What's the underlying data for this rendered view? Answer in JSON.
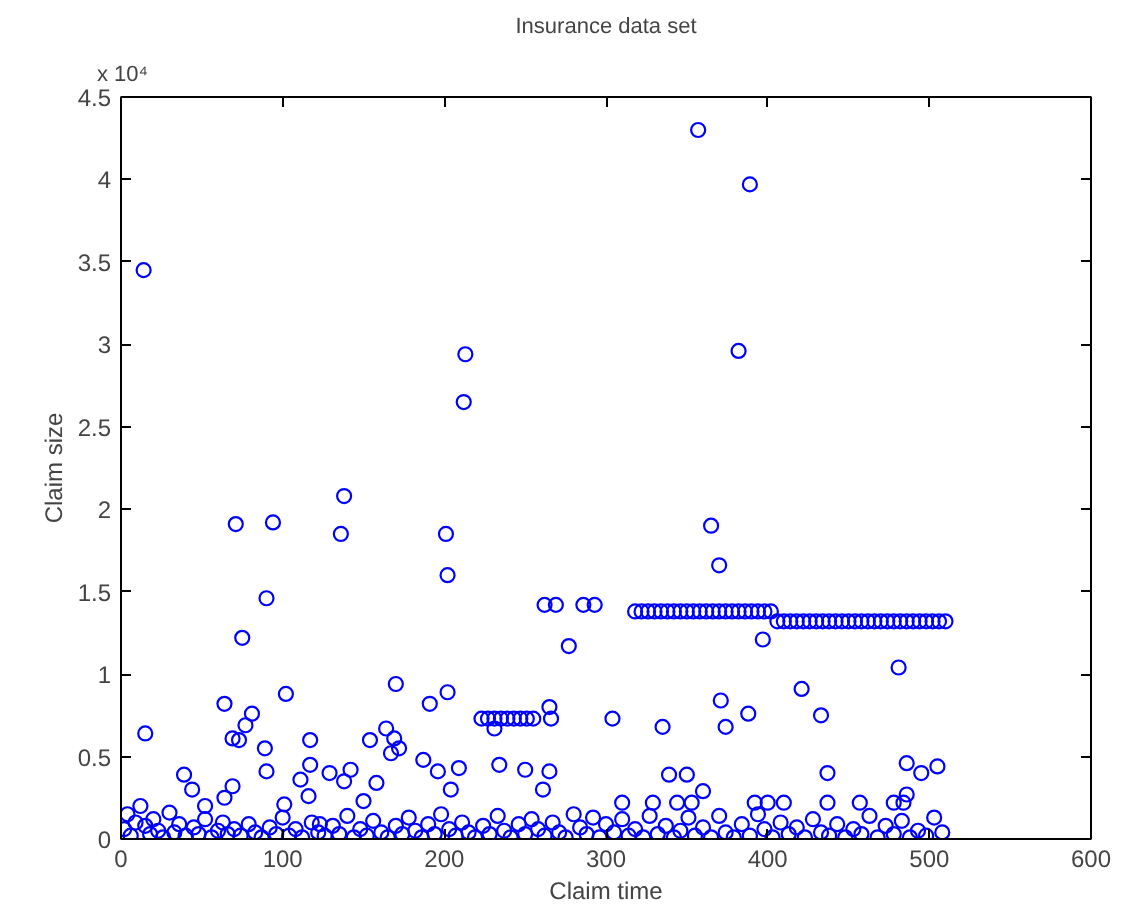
{
  "chart_data": {
    "type": "scatter",
    "title": "Insurance data set",
    "xlabel": "Claim time",
    "ylabel": "Claim size",
    "annotations": [
      "x 10⁴"
    ],
    "xlim": [
      0,
      600
    ],
    "xticks": [
      0,
      100,
      200,
      300,
      400,
      500,
      600
    ],
    "ylim": [
      0,
      4.5
    ],
    "yticks": [
      0,
      0.5,
      1,
      1.5,
      2,
      2.5,
      3,
      3.5,
      4,
      4.5
    ],
    "grid": false,
    "marker": "circle",
    "series": [
      {
        "color": "#0000ff",
        "x": [
          14,
          213,
          212,
          357,
          389,
          382,
          138,
          71,
          94,
          136,
          201,
          202,
          90,
          75,
          262,
          269,
          286,
          293,
          277,
          170,
          64,
          102,
          202,
          191,
          223,
          227,
          231,
          235,
          239,
          243,
          247,
          251,
          255,
          231,
          265,
          266,
          304,
          15,
          81,
          77,
          69,
          73,
          117,
          164,
          169,
          167,
          172,
          154,
          89,
          90,
          117,
          111,
          116,
          129,
          142,
          138,
          39,
          44,
          52,
          64,
          69,
          101,
          123,
          150,
          158,
          187,
          196,
          209,
          204,
          234,
          250,
          265,
          261,
          365,
          370,
          318,
          322,
          326,
          330,
          334,
          338,
          342,
          346,
          350,
          354,
          358,
          362,
          366,
          370,
          374,
          378,
          382,
          386,
          390,
          394,
          398,
          402,
          406,
          410,
          414,
          418,
          422,
          426,
          430,
          434,
          438,
          442,
          446,
          450,
          454,
          458,
          462,
          466,
          470,
          474,
          478,
          482,
          486,
          490,
          494,
          498,
          502,
          506,
          510,
          397,
          481,
          421,
          371,
          388,
          374,
          433,
          335,
          339,
          350,
          360,
          437,
          486,
          495,
          505,
          486,
          310,
          329,
          344,
          353,
          392,
          400,
          410,
          437,
          457,
          478,
          484,
          2,
          4,
          6,
          9,
          12,
          15,
          18,
          20,
          23,
          26,
          30,
          33,
          36,
          40,
          45,
          48,
          52,
          56,
          60,
          63,
          66,
          70,
          74,
          79,
          83,
          87,
          92,
          96,
          100,
          104,
          108,
          112,
          118,
          122,
          126,
          131,
          135,
          140,
          144,
          148,
          152,
          156,
          161,
          165,
          170,
          174,
          178,
          182,
          186,
          190,
          194,
          198,
          203,
          207,
          211,
          215,
          219,
          224,
          228,
          233,
          237,
          241,
          246,
          250,
          254,
          258,
          262,
          267,
          271,
          275,
          280,
          284,
          288,
          292,
          296,
          300,
          305,
          310,
          314,
          318,
          323,
          327,
          332,
          337,
          342,
          346,
          351,
          355,
          360,
          365,
          370,
          374,
          379,
          384,
          389,
          394,
          398,
          403,
          408,
          413,
          418,
          423,
          428,
          433,
          438,
          443,
          448,
          453,
          458,
          463,
          468,
          473,
          478,
          483,
          488,
          493,
          498,
          503,
          508
        ],
        "values": [
          3.45,
          2.94,
          2.65,
          4.3,
          3.97,
          2.96,
          2.08,
          1.91,
          1.92,
          1.85,
          1.85,
          1.6,
          1.46,
          1.22,
          1.42,
          1.42,
          1.42,
          1.42,
          1.17,
          0.94,
          0.82,
          0.88,
          0.89,
          0.82,
          0.73,
          0.73,
          0.73,
          0.73,
          0.73,
          0.73,
          0.73,
          0.73,
          0.73,
          0.67,
          0.8,
          0.73,
          0.73,
          0.64,
          0.76,
          0.69,
          0.61,
          0.6,
          0.6,
          0.67,
          0.61,
          0.52,
          0.55,
          0.6,
          0.55,
          0.41,
          0.45,
          0.36,
          0.26,
          0.4,
          0.42,
          0.35,
          0.39,
          0.3,
          0.2,
          0.25,
          0.32,
          0.21,
          0.09,
          0.23,
          0.34,
          0.48,
          0.41,
          0.43,
          0.3,
          0.45,
          0.42,
          0.41,
          0.3,
          1.9,
          1.66,
          1.38,
          1.38,
          1.38,
          1.38,
          1.38,
          1.38,
          1.38,
          1.38,
          1.38,
          1.38,
          1.38,
          1.38,
          1.38,
          1.38,
          1.38,
          1.38,
          1.38,
          1.38,
          1.38,
          1.38,
          1.38,
          1.38,
          1.32,
          1.32,
          1.32,
          1.32,
          1.32,
          1.32,
          1.32,
          1.32,
          1.32,
          1.32,
          1.32,
          1.32,
          1.32,
          1.32,
          1.32,
          1.32,
          1.32,
          1.32,
          1.32,
          1.32,
          1.32,
          1.32,
          1.32,
          1.32,
          1.32,
          1.32,
          1.32,
          1.21,
          1.04,
          0.91,
          0.84,
          0.76,
          0.68,
          0.75,
          0.68,
          0.39,
          0.39,
          0.29,
          0.4,
          0.46,
          0.4,
          0.44,
          0.27,
          0.22,
          0.22,
          0.22,
          0.22,
          0.22,
          0.22,
          0.22,
          0.22,
          0.22,
          0.22,
          0.22,
          0.06,
          0.15,
          0.02,
          0.1,
          0.2,
          0.08,
          0.03,
          0.12,
          0.05,
          0.01,
          0.16,
          0.04,
          0.09,
          0.02,
          0.07,
          0.03,
          0.12,
          0.01,
          0.05,
          0.1,
          0.03,
          0.06,
          0.02,
          0.09,
          0.04,
          0.01,
          0.07,
          0.03,
          0.13,
          0.02,
          0.06,
          0.01,
          0.1,
          0.04,
          0.02,
          0.08,
          0.03,
          0.14,
          0.01,
          0.06,
          0.02,
          0.11,
          0.04,
          0.01,
          0.08,
          0.03,
          0.13,
          0.05,
          0.01,
          0.09,
          0.03,
          0.15,
          0.06,
          0.02,
          0.1,
          0.04,
          0.01,
          0.08,
          0.03,
          0.14,
          0.05,
          0.01,
          0.09,
          0.03,
          0.12,
          0.06,
          0.02,
          0.1,
          0.04,
          0.01,
          0.15,
          0.07,
          0.03,
          0.13,
          0.01,
          0.09,
          0.04,
          0.12,
          0.02,
          0.06,
          0.01,
          0.14,
          0.03,
          0.08,
          0.01,
          0.05,
          0.13,
          0.02,
          0.07,
          0.01,
          0.14,
          0.04,
          0.01,
          0.09,
          0.02,
          0.15,
          0.06,
          0.01,
          0.1,
          0.03,
          0.07,
          0.01,
          0.12,
          0.04,
          0.02,
          0.09,
          0.01,
          0.06,
          0.03,
          0.14,
          0.01,
          0.08,
          0.03,
          0.11,
          0.01,
          0.05,
          0.02,
          0.13,
          0.04
        ]
      }
    ]
  }
}
